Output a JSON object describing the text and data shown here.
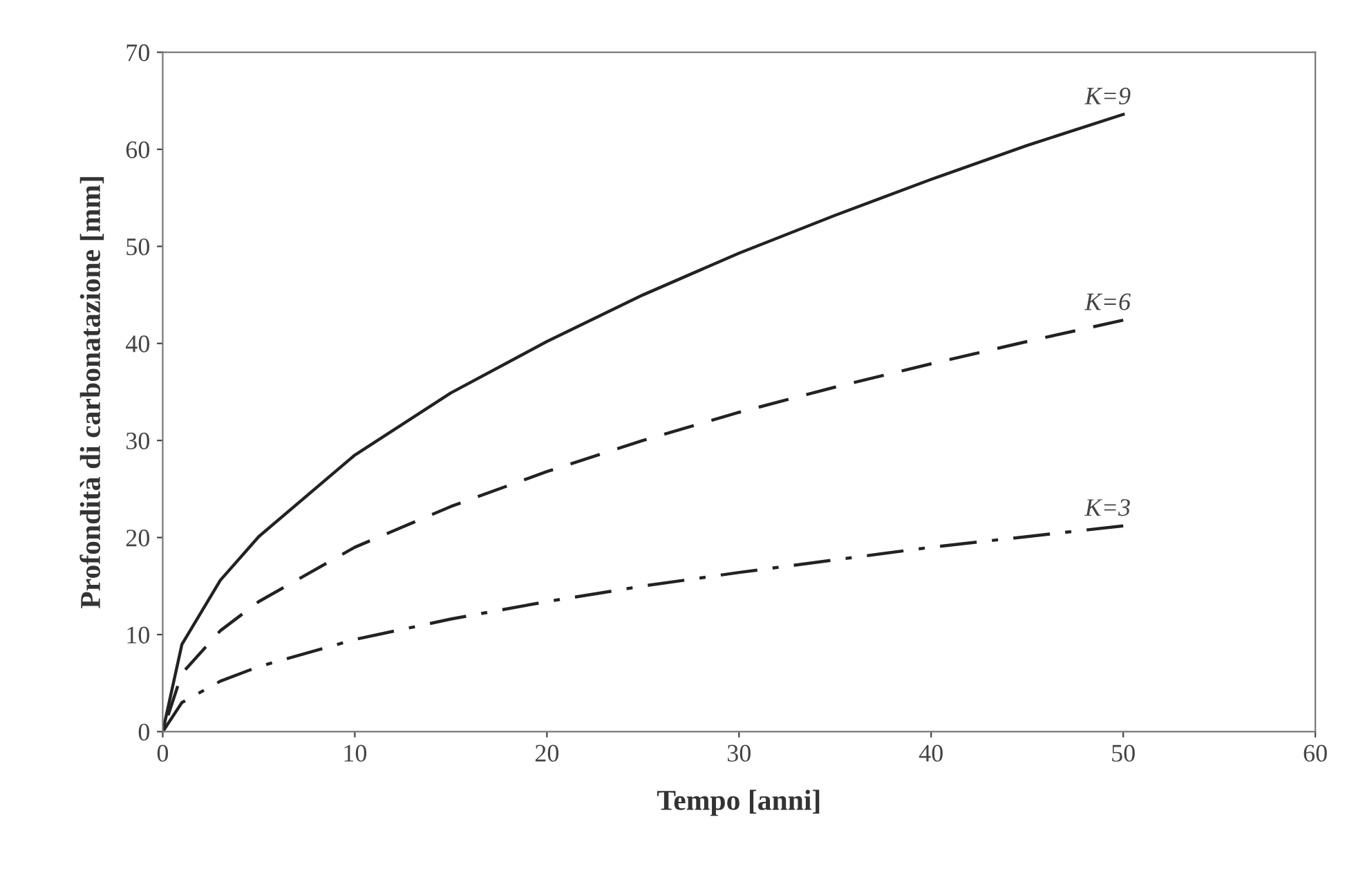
{
  "chart_data": {
    "type": "line",
    "xlabel": "Tempo [anni]",
    "ylabel": "Profondità di carbonatazione [mm]",
    "x": [
      0,
      1,
      3,
      5,
      10,
      15,
      20,
      25,
      30,
      35,
      40,
      45,
      50
    ],
    "series": [
      {
        "name": "K=9",
        "color": "#222222",
        "line_style": "solid",
        "values": [
          0,
          9,
          15.6,
          20.1,
          28.5,
          34.9,
          40.2,
          45,
          49.3,
          53.2,
          56.9,
          60.4,
          63.6
        ]
      },
      {
        "name": "K=6",
        "color": "#222222",
        "line_style": "dashed",
        "values": [
          0,
          6,
          10.4,
          13.4,
          19,
          23.2,
          26.8,
          30,
          32.9,
          35.5,
          37.9,
          40.2,
          42.4
        ]
      },
      {
        "name": "K=3",
        "color": "#222222",
        "line_style": "dashdot",
        "values": [
          0,
          3,
          5.2,
          6.7,
          9.5,
          11.6,
          13.4,
          15,
          16.4,
          17.7,
          19,
          20.1,
          21.2
        ]
      }
    ],
    "xlim": [
      0,
      60
    ],
    "ylim": [
      0,
      70
    ],
    "xticks": [
      0,
      10,
      20,
      30,
      40,
      50,
      60
    ],
    "yticks": [
      0,
      10,
      20,
      30,
      40,
      50,
      60,
      70
    ],
    "grid": false,
    "legend": false,
    "marker": "none"
  }
}
